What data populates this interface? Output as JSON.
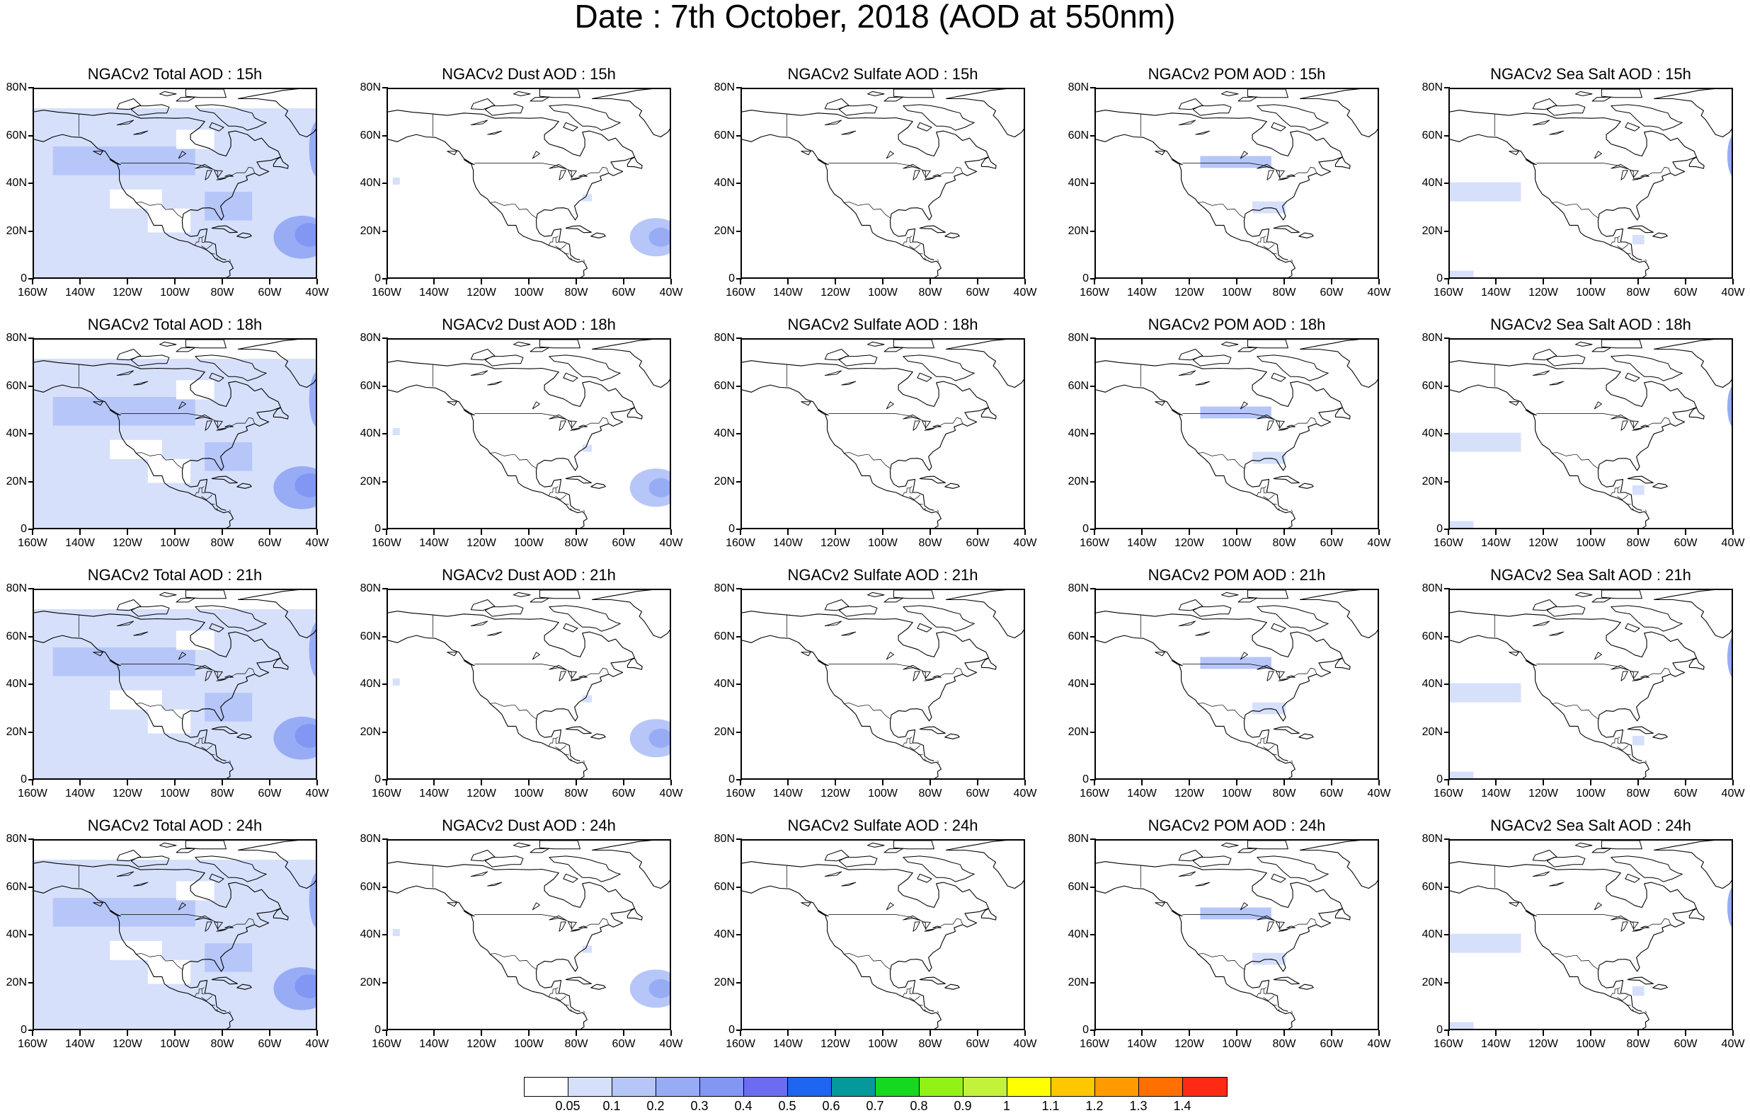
{
  "title": "Date : 7th October, 2018 (AOD at 550nm)",
  "columns": [
    {
      "key": "total",
      "prefix": "NGACv2 Total AOD",
      "color": "#b6c6f8"
    },
    {
      "key": "dust",
      "prefix": "NGACv2 Dust AOD",
      "color": "#b6c6f8"
    },
    {
      "key": "sulfate",
      "prefix": "NGACv2 Sulfate AOD",
      "color": "#b6c6f8"
    },
    {
      "key": "pom",
      "prefix": "NGACv2 POM AOD",
      "color": "#b6c6f8"
    },
    {
      "key": "seasalt",
      "prefix": "NGACv2 Sea Salt AOD",
      "color": "#b6c6f8"
    }
  ],
  "panels": [
    [
      "NGACv2 Total AOD : 15h",
      "NGACv2 Dust AOD : 15h",
      "NGACv2 Sulfate AOD : 15h",
      "NGACv2 POM AOD : 15h",
      "NGACv2 Sea Salt AOD : 15h"
    ],
    [
      "NGACv2 Total AOD : 18h",
      "NGACv2 Dust AOD : 18h",
      "NGACv2 Sulfate AOD : 18h",
      "NGACv2 POM AOD : 18h",
      "NGACv2 Sea Salt AOD : 18h"
    ],
    [
      "NGACv2 Total AOD : 21h",
      "NGACv2 Dust AOD : 21h",
      "NGACv2 Sulfate AOD : 21h",
      "NGACv2 POM AOD : 21h",
      "NGACv2 Sea Salt AOD : 21h"
    ],
    [
      "NGACv2 Total AOD : 24h",
      "NGACv2 Dust AOD : 24h",
      "NGACv2 Sulfate AOD : 24h",
      "NGACv2 POM AOD : 24h",
      "NGACv2 Sea Salt  AOD : 24h"
    ]
  ],
  "x_ticks": [
    "160W",
    "140W",
    "120W",
    "100W",
    "80W",
    "60W",
    "40W"
  ],
  "y_ticks": [
    "80N",
    "60N",
    "40N",
    "20N",
    "0"
  ],
  "colorbar": {
    "labels": [
      "0.05",
      "0.1",
      "0.2",
      "0.3",
      "0.4",
      "0.5",
      "0.6",
      "0.7",
      "0.8",
      "0.9",
      "1",
      "1.1",
      "1.2",
      "1.3",
      "1.4"
    ],
    "colors": [
      "#ffffff",
      "#d6e0fb",
      "#b6c6f8",
      "#98acf6",
      "#8296f3",
      "#6b6cf0",
      "#1e66ef",
      "#05999b",
      "#16d821",
      "#92f216",
      "#c2f23a",
      "#ffff00",
      "#ffc700",
      "#ff9b00",
      "#ff7000",
      "#ff2a14"
    ]
  }
}
